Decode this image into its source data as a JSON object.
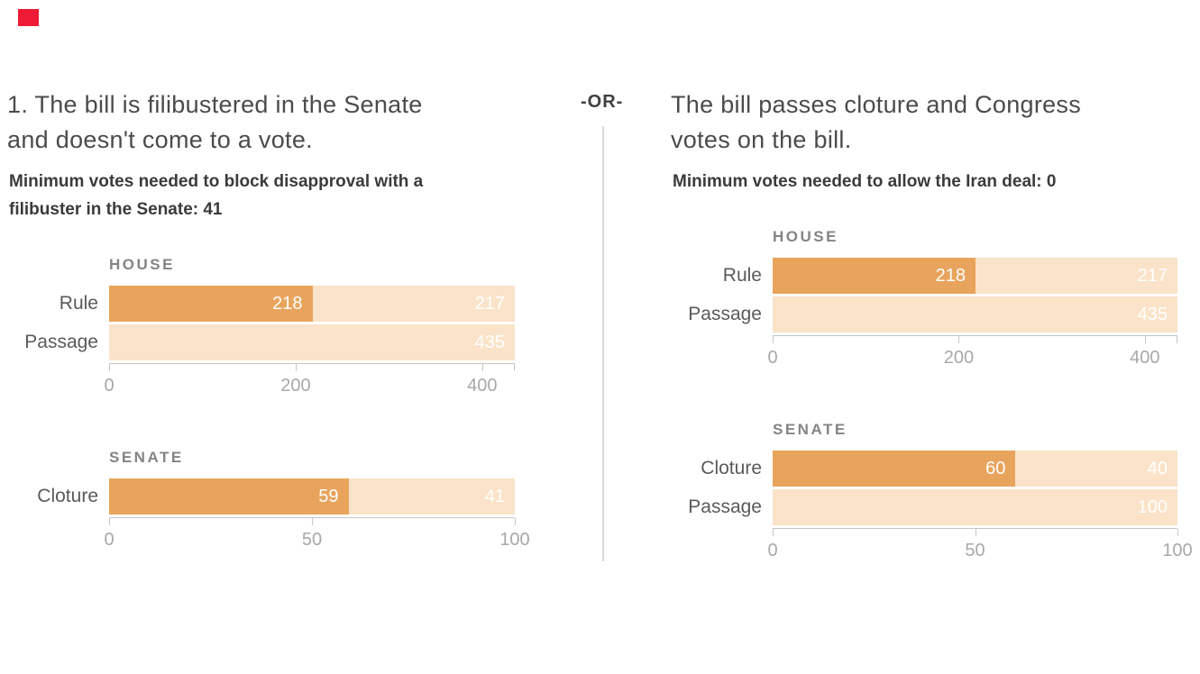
{
  "colors": {
    "dark_orange": "#e8a45c",
    "light_orange": "#fae3c9",
    "red_marker": "#ed1b36"
  },
  "divider": {
    "label": "-OR-"
  },
  "panels": [
    {
      "title": "1. The bill is filibustered in the Senate\nand doesn't come to a vote.",
      "subtitle": "Minimum votes needed to block disapproval with a\nfilibuster in the Senate: 41"
    },
    {
      "title": "The bill passes cloture and Congress\nvotes on the bill.",
      "subtitle": "Minimum votes needed to allow the Iran deal: 0"
    }
  ],
  "chart_data": [
    {
      "type": "bar",
      "panel": 0,
      "title": "HOUSE",
      "orientation": "horizontal-stacked",
      "xlim": [
        0,
        435
      ],
      "ticks": [
        0,
        200,
        400
      ],
      "tick_labels": [
        "0",
        "200",
        "400"
      ],
      "end_cap": true,
      "categories": [
        "Rule",
        "Passage"
      ],
      "series": [
        {
          "name": "dark",
          "values": [
            218,
            0
          ],
          "bar_labels": [
            "218",
            ""
          ]
        },
        {
          "name": "light",
          "values": [
            217,
            435
          ],
          "bar_labels": [
            "217",
            "435"
          ]
        }
      ]
    },
    {
      "type": "bar",
      "panel": 0,
      "title": "SENATE",
      "orientation": "horizontal-stacked",
      "xlim": [
        0,
        100
      ],
      "ticks": [
        0,
        50,
        100
      ],
      "tick_labels": [
        "0",
        "50",
        "100"
      ],
      "end_cap": false,
      "categories": [
        "Cloture"
      ],
      "series": [
        {
          "name": "dark",
          "values": [
            59
          ],
          "bar_labels": [
            "59"
          ]
        },
        {
          "name": "light",
          "values": [
            41
          ],
          "bar_labels": [
            "41"
          ]
        }
      ]
    },
    {
      "type": "bar",
      "panel": 1,
      "title": "HOUSE",
      "orientation": "horizontal-stacked",
      "xlim": [
        0,
        435
      ],
      "ticks": [
        0,
        200,
        400
      ],
      "tick_labels": [
        "0",
        "200",
        "400"
      ],
      "end_cap": true,
      "categories": [
        "Rule",
        "Passage"
      ],
      "series": [
        {
          "name": "dark",
          "values": [
            218,
            0
          ],
          "bar_labels": [
            "218",
            ""
          ]
        },
        {
          "name": "light",
          "values": [
            217,
            435
          ],
          "bar_labels": [
            "217",
            "435"
          ]
        }
      ]
    },
    {
      "type": "bar",
      "panel": 1,
      "title": "SENATE",
      "orientation": "horizontal-stacked",
      "xlim": [
        0,
        100
      ],
      "ticks": [
        0,
        50,
        100
      ],
      "tick_labels": [
        "0",
        "50",
        "100"
      ],
      "end_cap": false,
      "categories": [
        "Cloture",
        "Passage"
      ],
      "series": [
        {
          "name": "dark",
          "values": [
            60,
            0
          ],
          "bar_labels": [
            "60",
            ""
          ]
        },
        {
          "name": "light",
          "values": [
            40,
            100
          ],
          "bar_labels": [
            "40",
            "100"
          ]
        }
      ]
    }
  ]
}
